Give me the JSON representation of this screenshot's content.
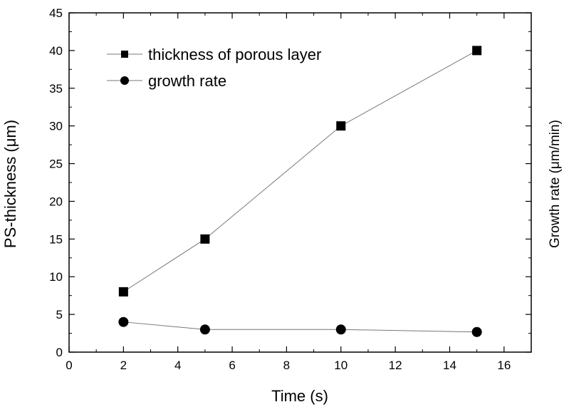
{
  "chart_data": {
    "type": "line",
    "title": "",
    "xlabel": "Time (s)",
    "ylabel": "PS-thickness (μm)",
    "ylabel_right": "Growth rate (μm/min)",
    "xlim": [
      0,
      17
    ],
    "ylim": [
      0,
      45
    ],
    "xticks": [
      0,
      2,
      4,
      6,
      8,
      10,
      12,
      14,
      16
    ],
    "xtick_labels": [
      "0",
      "2",
      "4",
      "6",
      "8",
      "10",
      "12",
      "14",
      "16"
    ],
    "yticks": [
      0,
      5,
      10,
      15,
      20,
      25,
      30,
      35,
      40,
      45
    ],
    "ytick_labels": [
      "0",
      "5",
      "10",
      "15",
      "20",
      "25",
      "30",
      "35",
      "40",
      "45"
    ],
    "grid": false,
    "legend_position": "top-left",
    "x": [
      2,
      5,
      10,
      15
    ],
    "series": [
      {
        "name": "thickness of porous layer",
        "marker": "square",
        "values": [
          8,
          15,
          30,
          40
        ]
      },
      {
        "name": "growth rate",
        "marker": "circle",
        "values": [
          4,
          3,
          3,
          2.67
        ]
      }
    ]
  }
}
